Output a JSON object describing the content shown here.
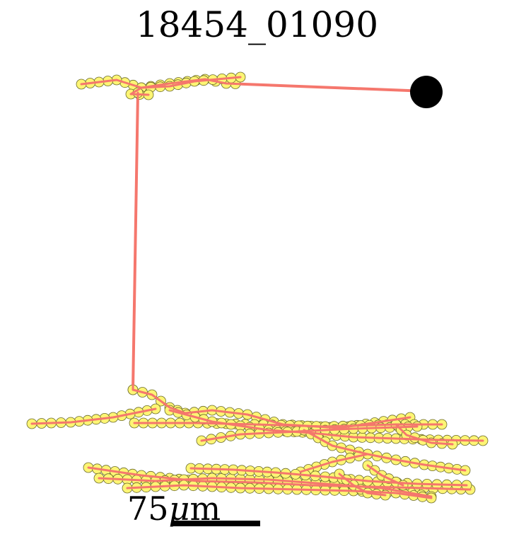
{
  "title": "18454_01090",
  "scale_bar": {
    "value": "75",
    "unit_mu": "μ",
    "unit_m": "m"
  },
  "colors": {
    "edge": "#f5776d",
    "node_fill": "#fdf574",
    "node_stroke": "#6b6b2a",
    "soma": "#000000"
  }
}
